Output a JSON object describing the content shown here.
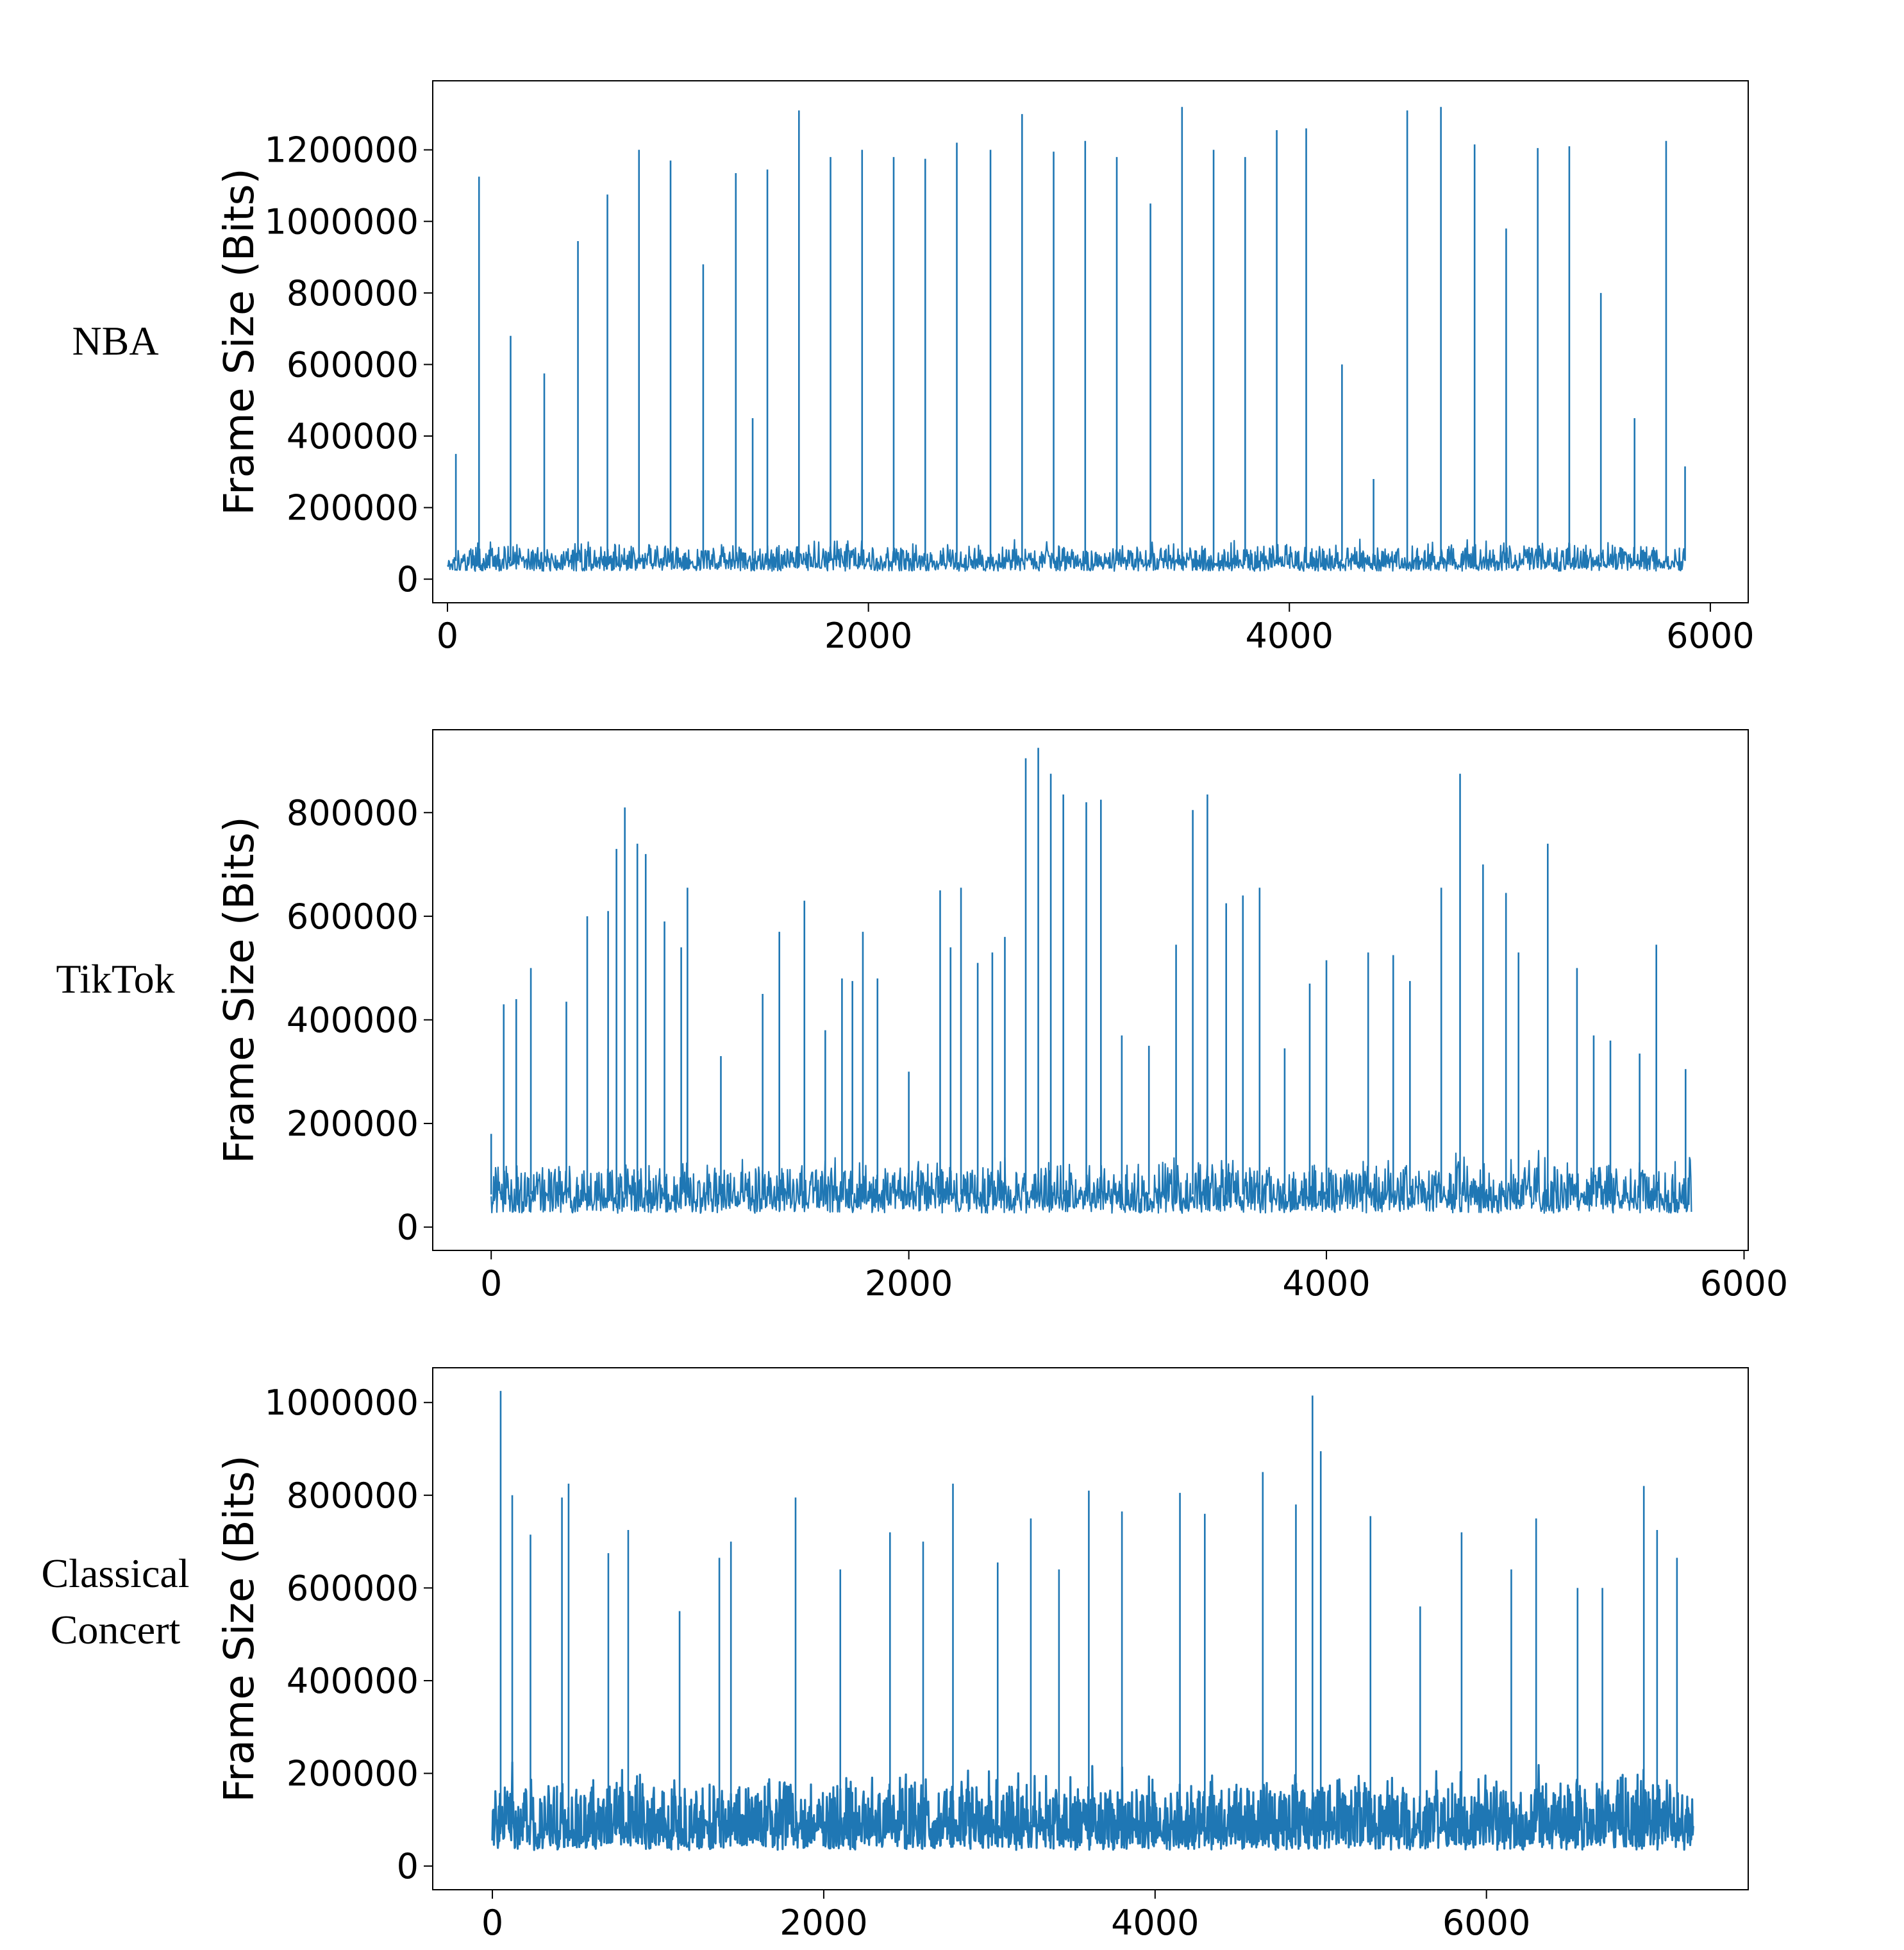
{
  "figure": {
    "series_color": "#1f77b4",
    "panels": [
      {
        "row_label": "NBA",
        "chart_data": {
          "type": "line",
          "ylabel": "Frame Size (Bits)",
          "xlabel": "",
          "xlim": [
            -70,
            6180
          ],
          "ylim": [
            -66000,
            1393000
          ],
          "xticks": [
            0,
            2000,
            4000,
            6000
          ],
          "yticks": [
            0,
            200000,
            400000,
            600000,
            800000,
            1000000,
            1200000
          ],
          "grid": false,
          "legend": "none",
          "series": [
            {
              "n_frames": 5880,
              "baseline_low": 5000,
              "baseline_high": 120000,
              "peak_frames": [
                40,
                150,
                300,
                460,
                620,
                760,
                910,
                1060,
                1215,
                1370,
                1450,
                1520,
                1670,
                1820,
                1970,
                2120,
                2270,
                2420,
                2580,
                2730,
                2880,
                3030,
                3180,
                3340,
                3490,
                3640,
                3790,
                3940,
                4080,
                4250,
                4400,
                4560,
                4720,
                4880,
                5030,
                5180,
                5330,
                5480,
                5640,
                5790,
                5880
              ],
              "peak_values": [
                350000,
                1125000,
                680000,
                575000,
                945000,
                1075000,
                1200000,
                1170000,
                880000,
                1135000,
                450000,
                1145000,
                1310000,
                1180000,
                1200000,
                1180000,
                1175000,
                1220000,
                1200000,
                1300000,
                1195000,
                1225000,
                1180000,
                1050000,
                1320000,
                1200000,
                1180000,
                1255000,
                1260000,
                600000,
                280000,
                1310000,
                1320000,
                1215000,
                980000,
                1205000,
                1210000,
                800000,
                450000,
                1225000,
                315000
              ]
            }
          ]
        }
      },
      {
        "row_label": "TikTok",
        "chart_data": {
          "type": "line",
          "ylabel": "Frame Size (Bits)",
          "xlabel": "",
          "xlim": [
            -280,
            6020
          ],
          "ylim": [
            -45000,
            960000
          ],
          "xticks": [
            0,
            2000,
            4000,
            6000
          ],
          "yticks": [
            0,
            200000,
            400000,
            600000,
            800000
          ],
          "grid": false,
          "legend": "none",
          "series": [
            {
              "n_frames": 5750,
              "baseline_low": 5000,
              "baseline_high": 150000,
              "peak_frames": [
                0,
                60,
                120,
                190,
                360,
                460,
                560,
                600,
                640,
                700,
                740,
                830,
                910,
                940,
                1100,
                1300,
                1380,
                1500,
                1600,
                1680,
                1730,
                1780,
                1850,
                2000,
                2150,
                2200,
                2250,
                2330,
                2400,
                2460,
                2560,
                2620,
                2680,
                2740,
                2850,
                2920,
                3020,
                3150,
                3280,
                3360,
                3430,
                3520,
                3600,
                3680,
                3800,
                3920,
                4000,
                4200,
                4320,
                4400,
                4550,
                4640,
                4750,
                4860,
                4920,
                5060,
                5200,
                5280,
                5360,
                5500,
                5580,
                5720
              ],
              "peak_values": [
                180000,
                430000,
                440000,
                500000,
                435000,
                600000,
                610000,
                730000,
                810000,
                740000,
                720000,
                590000,
                540000,
                655000,
                330000,
                450000,
                570000,
                630000,
                380000,
                480000,
                475000,
                570000,
                480000,
                300000,
                650000,
                540000,
                655000,
                510000,
                530000,
                560000,
                905000,
                925000,
                875000,
                835000,
                820000,
                825000,
                370000,
                350000,
                545000,
                805000,
                835000,
                625000,
                640000,
                655000,
                345000,
                470000,
                515000,
                530000,
                525000,
                475000,
                655000,
                875000,
                700000,
                645000,
                530000,
                740000,
                500000,
                370000,
                360000,
                335000,
                545000,
                305000
              ]
            }
          ]
        }
      },
      {
        "row_label": "Classical\nConcert",
        "chart_data": {
          "type": "line",
          "ylabel": "Frame Size (Bits)",
          "xlabel": "",
          "xlim": [
            -360,
            7580
          ],
          "ylim": [
            -51000,
            1075000
          ],
          "xticks": [
            0,
            2000,
            4000,
            6000
          ],
          "yticks": [
            0,
            200000,
            400000,
            600000,
            800000,
            1000000
          ],
          "grid": false,
          "legend": "none",
          "series": [
            {
              "n_frames": 7250,
              "baseline_low": 0,
              "baseline_high": 230000,
              "peak_frames": [
                50,
                120,
                230,
                420,
                460,
                700,
                820,
                1130,
                1370,
                1440,
                1830,
                2100,
                2400,
                2600,
                2780,
                3050,
                3250,
                3420,
                3600,
                3800,
                4150,
                4300,
                4650,
                4850,
                4950,
                5000,
                5300,
                5600,
                5850,
                6150,
                6300,
                6550,
                6700,
                6950,
                7030,
                7150
              ],
              "peak_values": [
                1025000,
                800000,
                715000,
                795000,
                825000,
                675000,
                725000,
                550000,
                665000,
                700000,
                795000,
                640000,
                720000,
                700000,
                825000,
                655000,
                750000,
                640000,
                810000,
                765000,
                805000,
                760000,
                850000,
                780000,
                1015000,
                895000,
                755000,
                560000,
                720000,
                640000,
                750000,
                600000,
                600000,
                820000,
                725000,
                665000
              ]
            }
          ]
        }
      }
    ]
  }
}
